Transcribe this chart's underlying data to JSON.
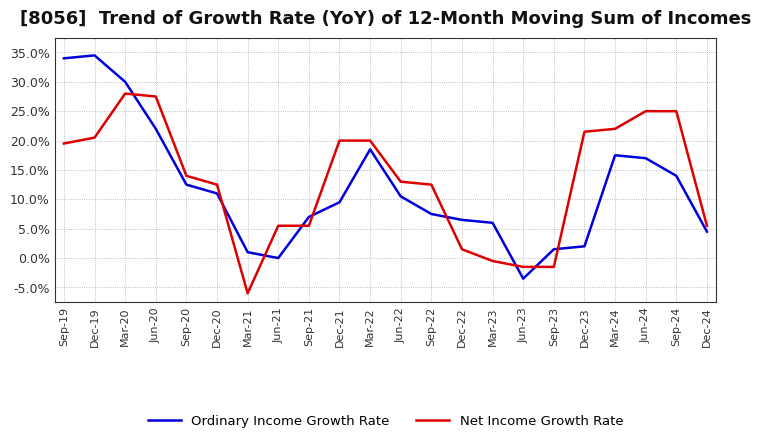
{
  "title": "[8056]  Trend of Growth Rate (YoY) of 12-Month Moving Sum of Incomes",
  "x_labels": [
    "Sep-19",
    "Dec-19",
    "Mar-20",
    "Jun-20",
    "Sep-20",
    "Dec-20",
    "Mar-21",
    "Jun-21",
    "Sep-21",
    "Dec-21",
    "Mar-22",
    "Jun-22",
    "Sep-22",
    "Dec-22",
    "Mar-23",
    "Jun-23",
    "Sep-23",
    "Dec-23",
    "Mar-24",
    "Jun-24",
    "Sep-24",
    "Dec-24"
  ],
  "ordinary_income": [
    34.0,
    34.5,
    30.0,
    22.0,
    12.5,
    11.0,
    1.0,
    0.0,
    7.0,
    9.5,
    18.5,
    10.5,
    7.5,
    6.5,
    6.0,
    -3.5,
    1.5,
    2.0,
    17.5,
    17.0,
    14.0,
    4.5
  ],
  "net_income": [
    19.5,
    20.5,
    28.0,
    27.5,
    14.0,
    12.5,
    -6.0,
    5.5,
    5.5,
    20.0,
    20.0,
    13.0,
    12.5,
    1.5,
    -0.5,
    -1.5,
    -1.5,
    21.5,
    22.0,
    25.0,
    25.0,
    5.5
  ],
  "ordinary_color": "#0000dd",
  "net_color": "#dd0000",
  "ylim": [
    -7.5,
    37.5
  ],
  "yticks": [
    -5.0,
    0.0,
    5.0,
    10.0,
    15.0,
    20.0,
    25.0,
    30.0,
    35.0
  ],
  "plot_bg": "#ffffff",
  "fig_bg": "#ffffff",
  "grid_color": "#aaaaaa",
  "title_fontsize": 13,
  "legend_ordinary": "Ordinary Income Growth Rate",
  "legend_net": "Net Income Growth Rate"
}
